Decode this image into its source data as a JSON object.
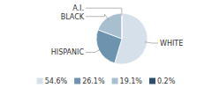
{
  "chart_data": {
    "type": "pie",
    "categories": [
      "WHITE",
      "HISPANIC",
      "BLACK",
      "A.I."
    ],
    "values": [
      54.6,
      26.1,
      19.1,
      0.2
    ],
    "value_labels": [
      "54.6%",
      "26.1%",
      "19.1%",
      "0.2%"
    ],
    "colors": [
      "#d6e0ea",
      "#6e93ae",
      "#a8bfcf",
      "#2e4d6b"
    ],
    "legend": "bottom"
  }
}
